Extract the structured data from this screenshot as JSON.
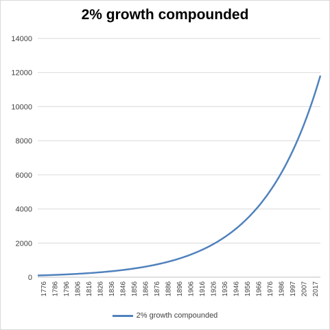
{
  "chart_data": {
    "type": "line",
    "title": "2% growth compounded",
    "xlabel": "",
    "ylabel": "",
    "ylim": [
      0,
      14000
    ],
    "yticks": [
      "0",
      "2000",
      "4000",
      "6000",
      "8000",
      "10000",
      "12000",
      "14000"
    ],
    "xticks": [
      "1776",
      "1786",
      "1796",
      "1806",
      "1816",
      "1826",
      "1836",
      "1846",
      "1856",
      "1866",
      "1876",
      "1886",
      "1896",
      "1906",
      "1916",
      "1926",
      "1936",
      "1946",
      "1956",
      "1966",
      "1976",
      "1986",
      "1997",
      "2007",
      "2017"
    ],
    "grid": "horizontal",
    "legend_position": "bottom",
    "series": [
      {
        "name": "2% growth compounded",
        "color": "#4f81bd",
        "start_year": 1776,
        "end_year": 2017,
        "start_value": 100,
        "growth_rate": 0.02
      }
    ]
  }
}
